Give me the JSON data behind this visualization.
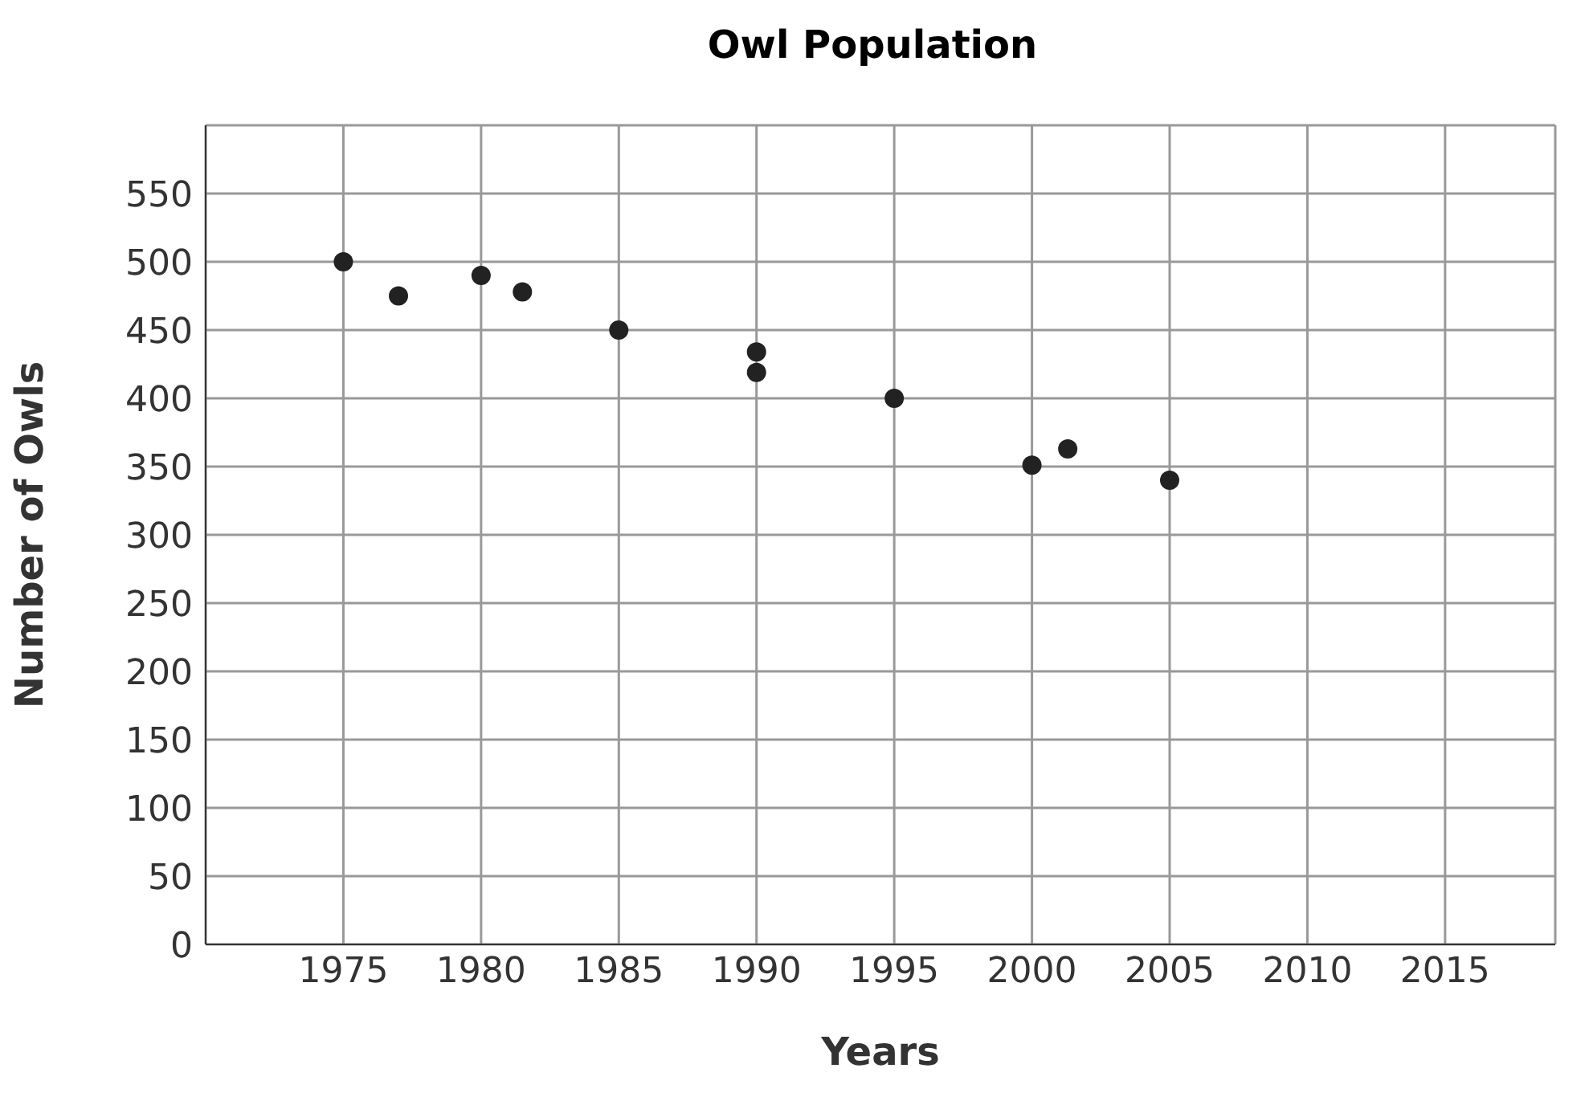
{
  "chart_data": {
    "type": "scatter",
    "title": "Owl Population",
    "xlabel": "Years",
    "ylabel": "Number of Owls",
    "x": [
      1975,
      1977,
      1980,
      1981.5,
      1985,
      1990,
      1990,
      1995,
      2000,
      2001.3,
      2005
    ],
    "values": [
      500,
      475,
      490,
      478,
      450,
      434,
      419,
      400,
      351,
      363,
      340
    ],
    "color": "#222222",
    "marker": "circle",
    "grid": true,
    "xlim": [
      1970,
      2019
    ],
    "xticks": [
      1975,
      1980,
      1985,
      1990,
      1995,
      2000,
      2005,
      2010,
      2015
    ],
    "ylim": [
      0,
      600
    ],
    "yticks": [
      0,
      50,
      100,
      150,
      200,
      250,
      300,
      350,
      400,
      450,
      500,
      550
    ]
  }
}
